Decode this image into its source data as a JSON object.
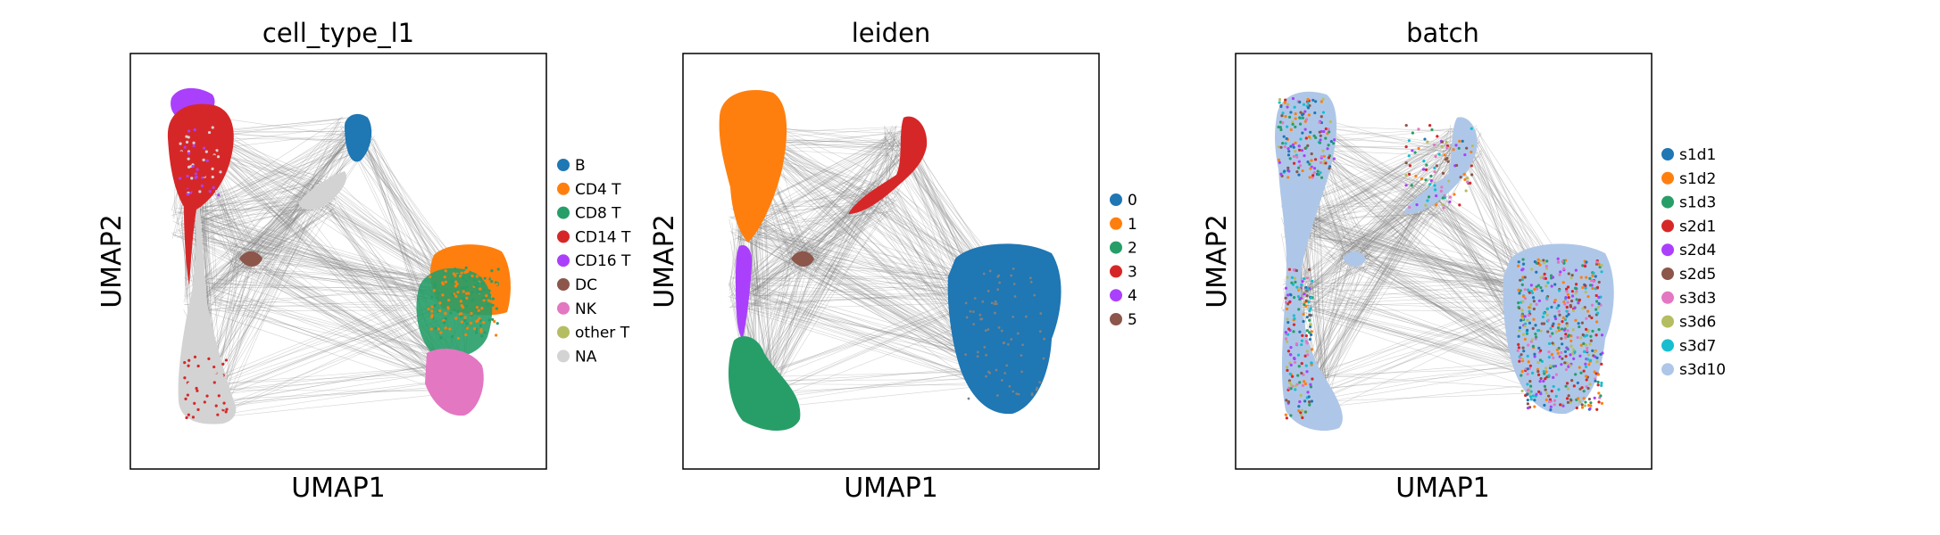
{
  "figure": {
    "background": "#ffffff",
    "edge_color": "#808080"
  },
  "chart_data": [
    {
      "type": "scatter",
      "title": "cell_type_l1",
      "xlabel": "UMAP1",
      "ylabel": "UMAP2",
      "grid": false,
      "legend_position": "right",
      "categories": [
        {
          "name": "B",
          "color": "#1f77b4"
        },
        {
          "name": "CD4 T",
          "color": "#ff7f0e"
        },
        {
          "name": "CD8 T",
          "color": "#279e68"
        },
        {
          "name": "CD14 T",
          "color": "#d62728"
        },
        {
          "name": "CD16 T",
          "color": "#aa40fc"
        },
        {
          "name": "DC",
          "color": "#8c564b"
        },
        {
          "name": "NK",
          "color": "#e377c2"
        },
        {
          "name": "other T",
          "color": "#b5bd61"
        },
        {
          "name": "NA",
          "color": "#d3d3d3"
        }
      ]
    },
    {
      "type": "scatter",
      "title": "leiden",
      "xlabel": "UMAP1",
      "ylabel": "UMAP2",
      "grid": false,
      "legend_position": "right",
      "categories": [
        {
          "name": "0",
          "color": "#1f77b4"
        },
        {
          "name": "1",
          "color": "#ff7f0e"
        },
        {
          "name": "2",
          "color": "#279e68"
        },
        {
          "name": "3",
          "color": "#d62728"
        },
        {
          "name": "4",
          "color": "#aa40fc"
        },
        {
          "name": "5",
          "color": "#8c564b"
        }
      ]
    },
    {
      "type": "scatter",
      "title": "batch",
      "xlabel": "UMAP1",
      "ylabel": "UMAP2",
      "grid": false,
      "legend_position": "right",
      "categories": [
        {
          "name": "s1d1",
          "color": "#1f77b4"
        },
        {
          "name": "s1d2",
          "color": "#ff7f0e"
        },
        {
          "name": "s1d3",
          "color": "#279e68"
        },
        {
          "name": "s2d1",
          "color": "#d62728"
        },
        {
          "name": "s2d4",
          "color": "#aa40fc"
        },
        {
          "name": "s2d5",
          "color": "#8c564b"
        },
        {
          "name": "s3d3",
          "color": "#e377c2"
        },
        {
          "name": "s3d6",
          "color": "#b5bd61"
        },
        {
          "name": "s3d7",
          "color": "#17becf"
        },
        {
          "name": "s3d10",
          "color": "#aec7e8"
        }
      ]
    }
  ]
}
